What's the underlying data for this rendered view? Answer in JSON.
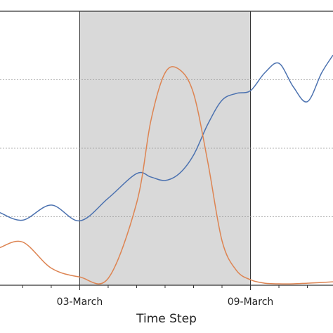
{
  "chart_data": {
    "type": "line",
    "xlabel": "Time Step",
    "x": [
      0.2,
      1,
      2,
      3,
      4,
      5,
      5.5,
      6,
      6.5,
      7,
      7.5,
      8,
      8.5,
      9,
      9.5,
      10,
      10.5,
      11,
      11.5,
      11.9
    ],
    "series": [
      {
        "color": "#4c72b0",
        "values": [
          1.06,
          0.95,
          1.17,
          0.94,
          1.27,
          1.63,
          1.58,
          1.53,
          1.63,
          1.9,
          2.35,
          2.7,
          2.8,
          2.84,
          3.1,
          3.24,
          2.9,
          2.68,
          3.1,
          3.36
        ]
      },
      {
        "color": "#dd8452",
        "values": [
          0.55,
          0.63,
          0.25,
          0.12,
          0.1,
          1.2,
          2.4,
          3.1,
          3.15,
          2.8,
          1.8,
          0.65,
          0.22,
          0.08,
          0.03,
          0.02,
          0.02,
          0.03,
          0.04,
          0.05
        ]
      }
    ],
    "xlim": [
      0.2,
      11.9
    ],
    "ylim": [
      0,
      4
    ],
    "xticks": [
      {
        "value": 3,
        "label": "03-March"
      },
      {
        "value": 9,
        "label": "09-March"
      }
    ],
    "minor_xticks": [
      1,
      2,
      4,
      5,
      6,
      7,
      8,
      10,
      11
    ],
    "yticks": [
      1,
      2,
      3
    ],
    "grid": true,
    "shaded_span": [
      3,
      9
    ],
    "shade_color": "#d9d9d9"
  }
}
